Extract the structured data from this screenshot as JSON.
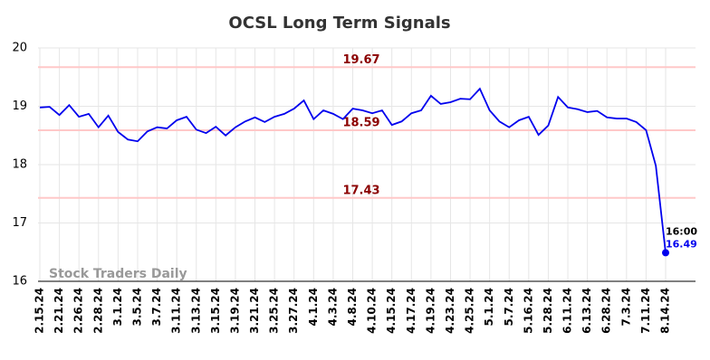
{
  "chart_data": {
    "type": "line",
    "title": "OCSL Long Term Signals",
    "categories": [
      "2.15.24",
      null,
      "2.21.24",
      null,
      "2.26.24",
      null,
      "2.28.24",
      null,
      "3.1.24",
      null,
      "3.5.24",
      null,
      "3.7.24",
      null,
      "3.11.24",
      null,
      "3.13.24",
      null,
      "3.15.24",
      null,
      "3.19.24",
      null,
      "3.21.24",
      null,
      "3.25.24",
      null,
      "3.27.24",
      null,
      "4.1.24",
      null,
      "4.3.24",
      null,
      "4.8.24",
      null,
      "4.10.24",
      null,
      "4.15.24",
      null,
      "4.17.24",
      null,
      "4.19.24",
      null,
      "4.23.24",
      null,
      "4.25.24",
      null,
      "5.1.24",
      null,
      "5.7.24",
      null,
      "5.16.24",
      null,
      "5.28.24",
      null,
      "6.11.24",
      null,
      "6.13.24",
      null,
      "6.28.24",
      null,
      "7.3.24",
      null,
      "7.11.24",
      null,
      "8.14.24"
    ],
    "values": [
      18.98,
      18.99,
      18.85,
      19.02,
      18.82,
      18.87,
      18.64,
      18.84,
      18.56,
      18.43,
      18.4,
      18.57,
      18.64,
      18.62,
      18.76,
      18.82,
      18.6,
      18.54,
      18.65,
      18.5,
      18.64,
      18.74,
      18.81,
      18.73,
      18.82,
      18.87,
      18.96,
      19.1,
      18.78,
      18.93,
      18.87,
      18.78,
      18.96,
      18.93,
      18.88,
      18.93,
      18.68,
      18.74,
      18.88,
      18.93,
      19.18,
      19.04,
      19.07,
      19.13,
      19.12,
      19.3,
      18.93,
      18.74,
      18.64,
      18.76,
      18.82,
      18.51,
      18.67,
      19.16,
      18.98,
      18.95,
      18.9,
      18.92,
      18.81,
      18.79,
      18.79,
      18.73,
      18.59,
      17.98,
      16.49
    ],
    "color": "#0000ee",
    "ylim": [
      16,
      20
    ],
    "yticks": [
      16,
      17,
      18,
      19,
      20
    ],
    "grid": true,
    "hlines": [
      19.67,
      18.59,
      17.43
    ],
    "hline_color": "#ffc8c8",
    "hline_label_color": "#8b0000",
    "annotation": "16:00",
    "watermark": "Stock Traders Daily"
  }
}
